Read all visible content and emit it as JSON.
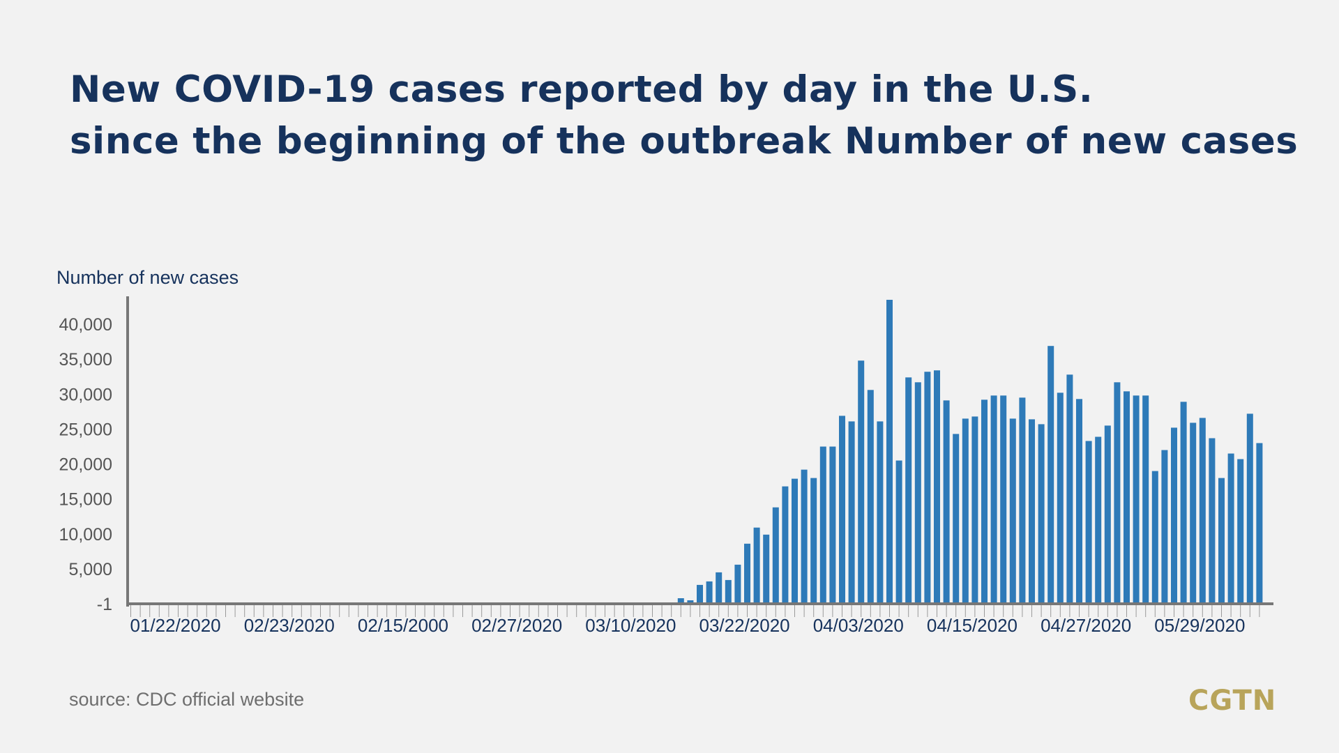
{
  "title_line1": "New COVID-19 cases reported by day in the U.S.",
  "title_line2": "since the beginning of the outbreak Number of new cases",
  "source": "source: CDC official website",
  "logo": "CGTN",
  "colors": {
    "bar": "#2e7ab8",
    "axis": "#777777",
    "title": "#16325c",
    "logo": "#b8a45a"
  },
  "chart_data": {
    "type": "bar",
    "ylabel": "Number of new cases",
    "ylim": [
      -1,
      44000
    ],
    "yticks": [
      {
        "value": -1,
        "label": "-1"
      },
      {
        "value": 5000,
        "label": "5,000"
      },
      {
        "value": 10000,
        "label": "10,000"
      },
      {
        "value": 15000,
        "label": "15,000"
      },
      {
        "value": 20000,
        "label": "20,000"
      },
      {
        "value": 25000,
        "label": "25,000"
      },
      {
        "value": 30000,
        "label": "30,000"
      },
      {
        "value": 35000,
        "label": "35,000"
      },
      {
        "value": 40000,
        "label": "40,000"
      }
    ],
    "x_tick_labels": [
      {
        "index": 0,
        "label": "01/22/2020"
      },
      {
        "index": 12,
        "label": "02/23/2020"
      },
      {
        "index": 24,
        "label": "02/15/2000"
      },
      {
        "index": 36,
        "label": "02/27/2020"
      },
      {
        "index": 48,
        "label": "03/10/2020"
      },
      {
        "index": 60,
        "label": "03/22/2020"
      },
      {
        "index": 72,
        "label": "04/03/2020"
      },
      {
        "index": 84,
        "label": "04/15/2020"
      },
      {
        "index": 96,
        "label": "04/27/2020"
      },
      {
        "index": 108,
        "label": "05/29/2020"
      }
    ],
    "values": [
      0,
      0,
      0,
      0,
      0,
      0,
      0,
      0,
      0,
      0,
      0,
      0,
      0,
      0,
      0,
      0,
      0,
      0,
      0,
      0,
      0,
      0,
      0,
      0,
      0,
      0,
      0,
      0,
      0,
      0,
      0,
      0,
      0,
      0,
      0,
      0,
      0,
      0,
      0,
      0,
      0,
      0,
      0,
      0,
      0,
      0,
      0,
      0,
      0,
      0,
      0,
      0,
      0,
      0,
      0,
      0,
      0,
      0,
      800,
      500,
      2700,
      3200,
      4500,
      3400,
      5600,
      8600,
      10900,
      9900,
      13800,
      16800,
      17900,
      19200,
      18000,
      22500,
      22500,
      26900,
      26100,
      34800,
      30600,
      26100,
      43500,
      20500,
      32400,
      31700,
      33200,
      33400,
      29100,
      24300,
      26500,
      26800,
      29200,
      29800,
      29800,
      26500,
      29500,
      26400,
      25700,
      36900,
      30200,
      32800,
      29300,
      23300,
      23900,
      25500,
      31700,
      30400,
      29800,
      29800,
      19000,
      22000,
      25200,
      28900,
      25900,
      26600,
      23700,
      18000,
      21500,
      20700,
      27200,
      23000
    ]
  }
}
